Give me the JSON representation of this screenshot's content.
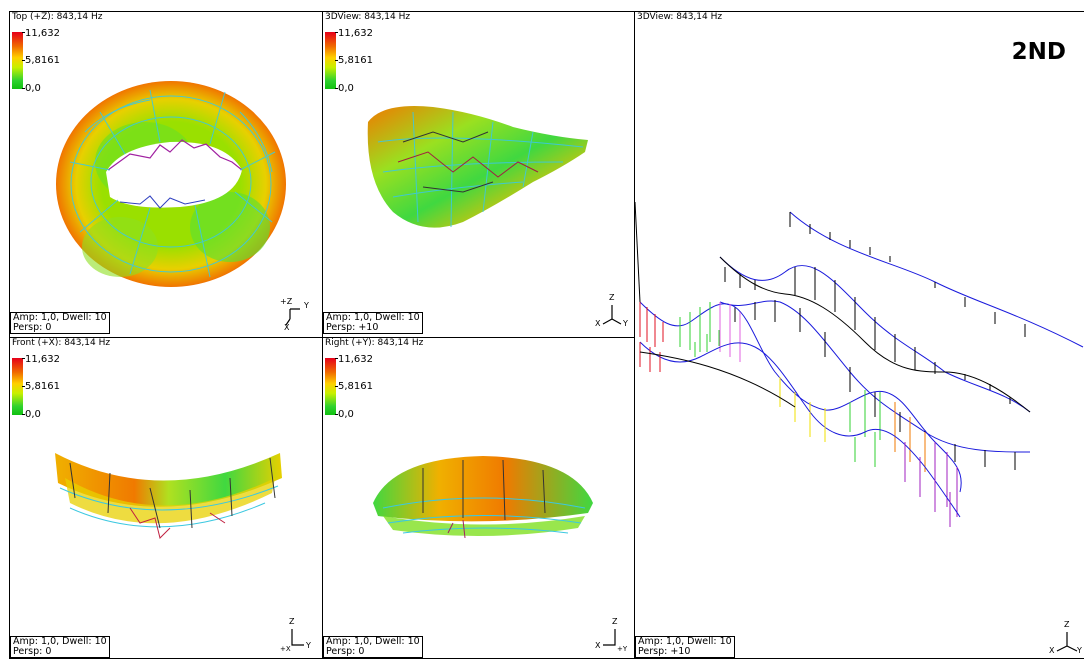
{
  "legend": {
    "max": "11,632",
    "mid": "5,8161",
    "min": "0,0"
  },
  "views": {
    "top": {
      "title": "Top (+Z): 843,14 Hz",
      "amp": "Amp: 1,0,  Dwell: 10",
      "persp": "Persp: 0",
      "triad": {
        "a": "+Z",
        "b": "Y",
        "c": "X"
      }
    },
    "view3d_small": {
      "title": "3DView: 843,14 Hz",
      "amp": "Amp: 1,0,  Dwell: 10",
      "persp": "Persp: +10",
      "triad": {
        "a": "Z",
        "b": "Y",
        "c": "X"
      }
    },
    "front": {
      "title": "Front (+X): 843,14 Hz",
      "amp": "Amp: 1,0,  Dwell: 10",
      "persp": "Persp: 0",
      "triad": {
        "a": "Z",
        "b": "Y",
        "c": "+X"
      }
    },
    "right": {
      "title": "Right (+Y): 843,14 Hz",
      "amp": "Amp: 1,0,  Dwell: 10",
      "persp": "Persp: 0",
      "triad": {
        "a": "Z",
        "b": "+Y",
        "c": "X"
      }
    },
    "view3d_large": {
      "title": "3DView: 843,14 Hz",
      "amp": "Amp: 1,0,  Dwell: 10",
      "persp": "Persp: +10",
      "label": "2ND",
      "triad": {
        "a": "Z",
        "b": "Y",
        "c": "X"
      }
    }
  },
  "colors": {
    "wire": "#3cc8e0",
    "dark": "#222222",
    "red": "#e01020",
    "orange": "#f07a00",
    "yellow": "#f0e000",
    "green": "#30d030",
    "blue": "#1a1adc"
  }
}
